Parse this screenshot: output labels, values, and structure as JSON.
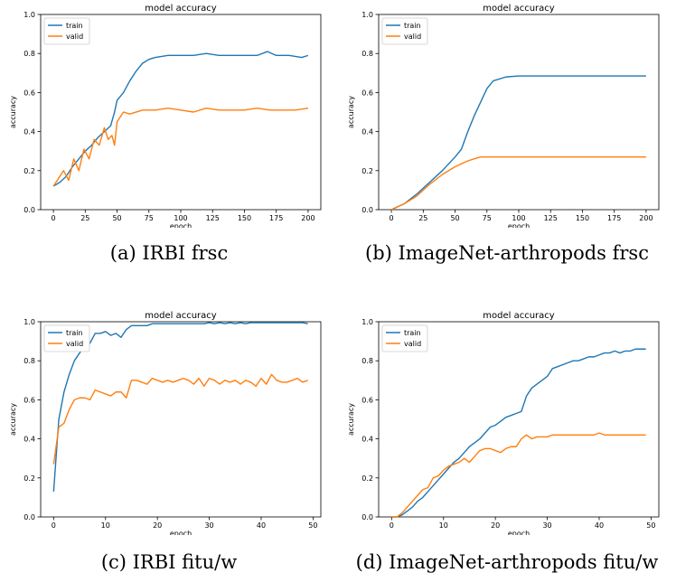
{
  "chart_data": [
    {
      "type": "line",
      "title": "model accuracy",
      "xlabel": "epoch",
      "ylabel": "accuracy",
      "caption": "(a) IRBI frsc",
      "xlim": [
        -10,
        210
      ],
      "ylim": [
        0.0,
        1.0
      ],
      "xticks": [
        0,
        25,
        50,
        75,
        100,
        125,
        150,
        175,
        200
      ],
      "yticks": [
        0.0,
        0.2,
        0.4,
        0.6,
        0.8,
        1.0
      ],
      "legend": "top-left",
      "series": [
        {
          "name": "train",
          "color": "#1f77b4",
          "x": [
            0,
            5,
            10,
            15,
            20,
            25,
            30,
            35,
            40,
            45,
            48,
            50,
            55,
            60,
            65,
            70,
            75,
            80,
            90,
            100,
            110,
            120,
            130,
            140,
            150,
            160,
            168,
            175,
            185,
            195,
            200
          ],
          "y": [
            0.12,
            0.14,
            0.17,
            0.22,
            0.26,
            0.3,
            0.33,
            0.37,
            0.4,
            0.43,
            0.5,
            0.56,
            0.6,
            0.66,
            0.71,
            0.75,
            0.77,
            0.78,
            0.79,
            0.79,
            0.79,
            0.8,
            0.79,
            0.79,
            0.79,
            0.79,
            0.81,
            0.79,
            0.79,
            0.78,
            0.79
          ]
        },
        {
          "name": "valid",
          "color": "#ff7f0e",
          "x": [
            0,
            4,
            8,
            12,
            16,
            20,
            24,
            28,
            32,
            36,
            40,
            43,
            46,
            48,
            50,
            55,
            60,
            70,
            80,
            90,
            100,
            110,
            120,
            130,
            140,
            150,
            160,
            170,
            180,
            190,
            200
          ],
          "y": [
            0.12,
            0.16,
            0.2,
            0.15,
            0.26,
            0.2,
            0.31,
            0.26,
            0.36,
            0.33,
            0.42,
            0.36,
            0.38,
            0.33,
            0.45,
            0.5,
            0.49,
            0.51,
            0.51,
            0.52,
            0.51,
            0.5,
            0.52,
            0.51,
            0.51,
            0.51,
            0.52,
            0.51,
            0.51,
            0.51,
            0.52
          ]
        }
      ]
    },
    {
      "type": "line",
      "title": "model accuracy",
      "xlabel": "epoch",
      "ylabel": "accuracy",
      "caption": "(b) ImageNet-arthropods frsc",
      "xlim": [
        -10,
        210
      ],
      "ylim": [
        0.0,
        1.0
      ],
      "xticks": [
        0,
        25,
        50,
        75,
        100,
        125,
        150,
        175,
        200
      ],
      "yticks": [
        0.0,
        0.2,
        0.4,
        0.6,
        0.8,
        1.0
      ],
      "legend": "top-left",
      "series": [
        {
          "name": "train",
          "color": "#1f77b4",
          "x": [
            0,
            10,
            20,
            30,
            40,
            50,
            55,
            60,
            65,
            70,
            75,
            80,
            90,
            100,
            120,
            140,
            160,
            180,
            200
          ],
          "y": [
            0.0,
            0.03,
            0.08,
            0.14,
            0.2,
            0.27,
            0.31,
            0.4,
            0.48,
            0.55,
            0.62,
            0.66,
            0.68,
            0.685,
            0.685,
            0.685,
            0.685,
            0.685,
            0.685
          ]
        },
        {
          "name": "valid",
          "color": "#ff7f0e",
          "x": [
            0,
            10,
            20,
            30,
            40,
            50,
            60,
            65,
            70,
            80,
            100,
            120,
            140,
            160,
            180,
            200
          ],
          "y": [
            0.0,
            0.03,
            0.07,
            0.13,
            0.18,
            0.22,
            0.25,
            0.26,
            0.27,
            0.27,
            0.27,
            0.27,
            0.27,
            0.27,
            0.27,
            0.27
          ]
        }
      ]
    },
    {
      "type": "line",
      "title": "model accuracy",
      "xlabel": "epoch",
      "ylabel": "accuracy",
      "caption": "(c) IRBI fitu/w",
      "xlim": [
        -2.5,
        51.5
      ],
      "ylim": [
        0.0,
        1.0
      ],
      "xticks": [
        0,
        10,
        20,
        30,
        40,
        50
      ],
      "yticks": [
        0.0,
        0.2,
        0.4,
        0.6,
        0.8,
        1.0
      ],
      "legend": "top-left",
      "series": [
        {
          "name": "train",
          "color": "#1f77b4",
          "x": [
            0,
            1,
            2,
            3,
            4,
            5,
            6,
            7,
            8,
            9,
            10,
            11,
            12,
            13,
            14,
            15,
            16,
            17,
            18,
            19,
            20,
            21,
            22,
            23,
            24,
            25,
            26,
            27,
            28,
            29,
            30,
            31,
            32,
            33,
            34,
            35,
            36,
            37,
            38,
            39,
            40,
            41,
            42,
            43,
            44,
            45,
            46,
            47,
            48,
            49
          ],
          "y": [
            0.13,
            0.5,
            0.64,
            0.73,
            0.8,
            0.84,
            0.87,
            0.89,
            0.94,
            0.94,
            0.95,
            0.93,
            0.94,
            0.92,
            0.96,
            0.98,
            0.98,
            0.98,
            0.98,
            0.99,
            0.99,
            0.99,
            0.99,
            0.99,
            0.99,
            0.99,
            0.99,
            0.99,
            0.99,
            0.99,
            0.995,
            0.99,
            0.995,
            0.99,
            0.995,
            0.99,
            0.995,
            0.99,
            0.995,
            0.995,
            0.995,
            0.995,
            0.995,
            0.995,
            0.995,
            0.995,
            0.995,
            0.995,
            0.995,
            0.99
          ]
        },
        {
          "name": "valid",
          "color": "#ff7f0e",
          "x": [
            0,
            1,
            2,
            3,
            4,
            5,
            6,
            7,
            8,
            9,
            10,
            11,
            12,
            13,
            14,
            15,
            16,
            17,
            18,
            19,
            20,
            21,
            22,
            23,
            24,
            25,
            26,
            27,
            28,
            29,
            30,
            31,
            32,
            33,
            34,
            35,
            36,
            37,
            38,
            39,
            40,
            41,
            42,
            43,
            44,
            45,
            46,
            47,
            48,
            49
          ],
          "y": [
            0.27,
            0.46,
            0.48,
            0.55,
            0.6,
            0.61,
            0.61,
            0.6,
            0.65,
            0.64,
            0.63,
            0.62,
            0.64,
            0.64,
            0.61,
            0.7,
            0.7,
            0.69,
            0.68,
            0.71,
            0.7,
            0.69,
            0.7,
            0.69,
            0.7,
            0.71,
            0.7,
            0.68,
            0.71,
            0.67,
            0.71,
            0.7,
            0.68,
            0.7,
            0.69,
            0.7,
            0.68,
            0.7,
            0.69,
            0.67,
            0.71,
            0.68,
            0.73,
            0.7,
            0.69,
            0.69,
            0.7,
            0.71,
            0.69,
            0.7
          ]
        }
      ]
    },
    {
      "type": "line",
      "title": "model accuracy",
      "xlabel": "epoch",
      "ylabel": "accuracy",
      "caption": "(d) ImageNet-arthropods fitu/w",
      "xlim": [
        -2.5,
        51.5
      ],
      "ylim": [
        0.0,
        1.0
      ],
      "xticks": [
        0,
        10,
        20,
        30,
        40,
        50
      ],
      "yticks": [
        0.0,
        0.2,
        0.4,
        0.6,
        0.8,
        1.0
      ],
      "legend": "top-left",
      "series": [
        {
          "name": "train",
          "color": "#1f77b4",
          "x": [
            0,
            1,
            2,
            3,
            4,
            5,
            6,
            7,
            8,
            9,
            10,
            11,
            12,
            13,
            14,
            15,
            16,
            17,
            18,
            19,
            20,
            21,
            22,
            23,
            24,
            25,
            26,
            27,
            28,
            29,
            30,
            31,
            32,
            33,
            34,
            35,
            36,
            37,
            38,
            39,
            40,
            41,
            42,
            43,
            44,
            45,
            46,
            47,
            48,
            49
          ],
          "y": [
            0.0,
            0.0,
            0.01,
            0.03,
            0.05,
            0.08,
            0.1,
            0.13,
            0.16,
            0.19,
            0.22,
            0.25,
            0.28,
            0.3,
            0.33,
            0.36,
            0.38,
            0.4,
            0.43,
            0.46,
            0.47,
            0.49,
            0.51,
            0.52,
            0.53,
            0.54,
            0.62,
            0.66,
            0.68,
            0.7,
            0.72,
            0.76,
            0.77,
            0.78,
            0.79,
            0.8,
            0.8,
            0.81,
            0.82,
            0.82,
            0.83,
            0.84,
            0.84,
            0.85,
            0.84,
            0.85,
            0.85,
            0.86,
            0.86,
            0.86
          ]
        },
        {
          "name": "valid",
          "color": "#ff7f0e",
          "x": [
            0,
            1,
            2,
            3,
            4,
            5,
            6,
            7,
            8,
            9,
            10,
            11,
            12,
            13,
            14,
            15,
            16,
            17,
            18,
            19,
            20,
            21,
            22,
            23,
            24,
            25,
            26,
            27,
            28,
            29,
            30,
            31,
            32,
            33,
            34,
            35,
            36,
            37,
            38,
            39,
            40,
            41,
            42,
            43,
            44,
            45,
            46,
            47,
            48,
            49
          ],
          "y": [
            0.0,
            0.0,
            0.02,
            0.05,
            0.08,
            0.11,
            0.14,
            0.15,
            0.2,
            0.21,
            0.24,
            0.26,
            0.27,
            0.28,
            0.3,
            0.28,
            0.31,
            0.34,
            0.35,
            0.35,
            0.34,
            0.33,
            0.35,
            0.36,
            0.36,
            0.4,
            0.42,
            0.4,
            0.41,
            0.41,
            0.41,
            0.42,
            0.42,
            0.42,
            0.42,
            0.42,
            0.42,
            0.42,
            0.42,
            0.42,
            0.43,
            0.42,
            0.42,
            0.42,
            0.42,
            0.42,
            0.42,
            0.42,
            0.42,
            0.42
          ]
        }
      ]
    }
  ]
}
